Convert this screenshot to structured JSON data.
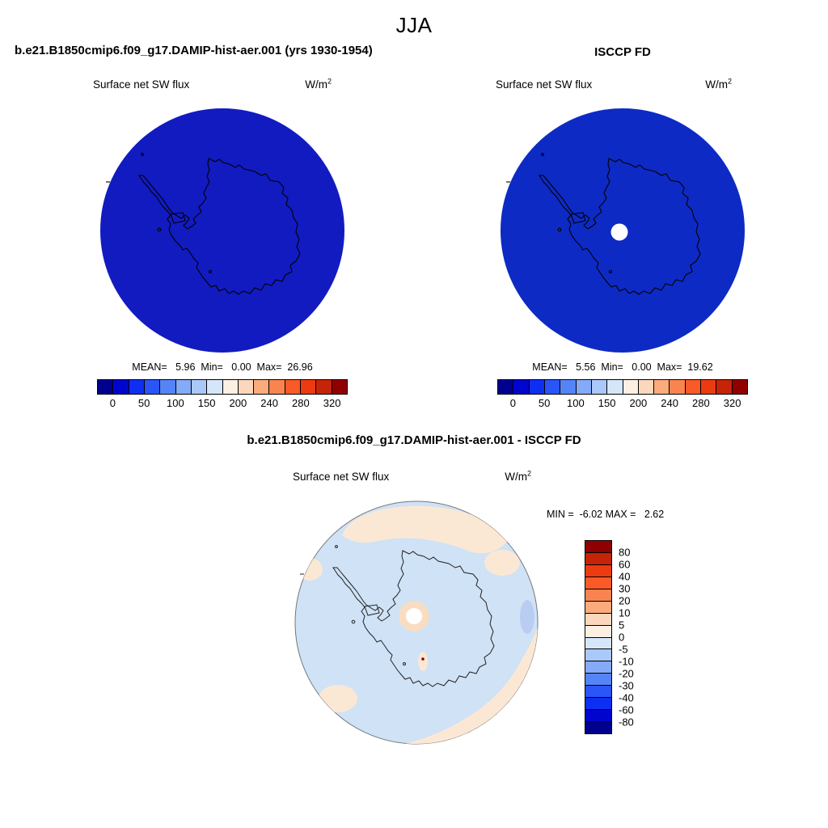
{
  "page_title": "JJA",
  "colors": {
    "map_model_fill": "#121bc0",
    "map_obs_fill": "#0e2ac4",
    "pole_hole_fill": "#ffffff",
    "coast_stroke": "#000000",
    "diff_base_fill": "#cfe2f6",
    "diff_warm_fill": "#fbe8d4",
    "diff_pole_ring_fill": "#f9ddc2",
    "diff_cool_patch_fill": "#b9cdf2",
    "diff_dot_fill": "#8b0000",
    "diff_coast_stroke": "#222222",
    "diff_circle_edge": "#777777"
  },
  "panels": {
    "model": {
      "header": "b.e21.B1850cmip6.f09_g17.DAMIP-hist-aer.001 (yrs 1930-1954)",
      "subtitle": "Surface net SW flux",
      "units_base": "W/m",
      "units_exp": "2",
      "stats": "MEAN=   5.96  Min=   0.00  Max=  26.96"
    },
    "obs": {
      "header": "ISCCP FD",
      "subtitle": "Surface net SW flux",
      "units_base": "W/m",
      "units_exp": "2",
      "stats": "MEAN=   5.56  Min=   0.00  Max=  19.62"
    },
    "diff": {
      "header": "b.e21.B1850cmip6.f09_g17.DAMIP-hist-aer.001 - ISCCP FD",
      "subtitle": "Surface net SW flux",
      "units_base": "W/m",
      "units_exp": "2",
      "minmax": "MIN =  -6.02 MAX =   2.62"
    }
  },
  "colorbar_flux": {
    "colors": [
      "#00008f",
      "#0005cd",
      "#0e2ff2",
      "#2a55f8",
      "#5584f8",
      "#84aaf8",
      "#abc8fa",
      "#d6e6fa",
      "#fdf0e3",
      "#fbd8bd",
      "#fbab7c",
      "#fa8450",
      "#f95a27",
      "#ec3b11",
      "#c62408",
      "#910000"
    ],
    "labels": [
      "0",
      "50",
      "100",
      "150",
      "200",
      "240",
      "280",
      "320"
    ]
  },
  "colorbar_diff": {
    "colors": [
      "#910000",
      "#c62408",
      "#ec3b11",
      "#f95a27",
      "#fa8450",
      "#fbab7c",
      "#fbd8bd",
      "#fdf0e3",
      "#d6e6fa",
      "#abc8fa",
      "#84aaf8",
      "#5584f8",
      "#2a55f8",
      "#0e2ff2",
      "#0005cd",
      "#00008f"
    ],
    "labels": [
      "80",
      "60",
      "40",
      "30",
      "20",
      "10",
      "5",
      "0",
      "-5",
      "-10",
      "-20",
      "-30",
      "-40",
      "-60",
      "-80"
    ]
  },
  "chart_data": [
    {
      "type": "heatmap",
      "subtype": "south-polar-stereographic-map",
      "title": "b.e21.B1850cmip6.f09_g17.DAMIP-hist-aer.001 (yrs 1930-1954)",
      "season": "JJA",
      "variable": "Surface net SW flux",
      "units": "W/m^2",
      "stats": {
        "mean": 5.96,
        "min": 0.0,
        "max": 26.96
      },
      "levels": [
        0,
        25,
        50,
        75,
        100,
        125,
        150,
        175,
        200,
        220,
        240,
        260,
        280,
        300,
        320
      ],
      "labeled_levels": [
        0,
        50,
        100,
        150,
        200,
        240,
        280,
        320
      ],
      "legend_position": "bottom",
      "notes": "entire domain in lowest bins (polar winter, near-zero SW flux), Antarctica coastline overlaid"
    },
    {
      "type": "heatmap",
      "subtype": "south-polar-stereographic-map",
      "title": "ISCCP FD",
      "season": "JJA",
      "variable": "Surface net SW flux",
      "units": "W/m^2",
      "stats": {
        "mean": 5.56,
        "min": 0.0,
        "max": 19.62
      },
      "levels": [
        0,
        25,
        50,
        75,
        100,
        125,
        150,
        175,
        200,
        220,
        240,
        260,
        280,
        300,
        320
      ],
      "labeled_levels": [
        0,
        50,
        100,
        150,
        200,
        240,
        280,
        320
      ],
      "legend_position": "bottom",
      "notes": "same field from observations; white circular missing-data hole at the pole"
    },
    {
      "type": "heatmap",
      "subtype": "south-polar-stereographic-difference-map",
      "title": "b.e21.B1850cmip6.f09_g17.DAMIP-hist-aer.001 - ISCCP FD",
      "season": "JJA",
      "variable": "Surface net SW flux",
      "units": "W/m^2",
      "stats": {
        "min": -6.02,
        "max": 2.62
      },
      "levels": [
        -80,
        -60,
        -40,
        -30,
        -20,
        -10,
        -5,
        0,
        5,
        10,
        20,
        30,
        40,
        60,
        80
      ],
      "legend_position": "right",
      "notes": "mostly 0 to -5 (pale blue) with 0 to +5 (pale peach) patches along the map rim and around the pole"
    }
  ]
}
